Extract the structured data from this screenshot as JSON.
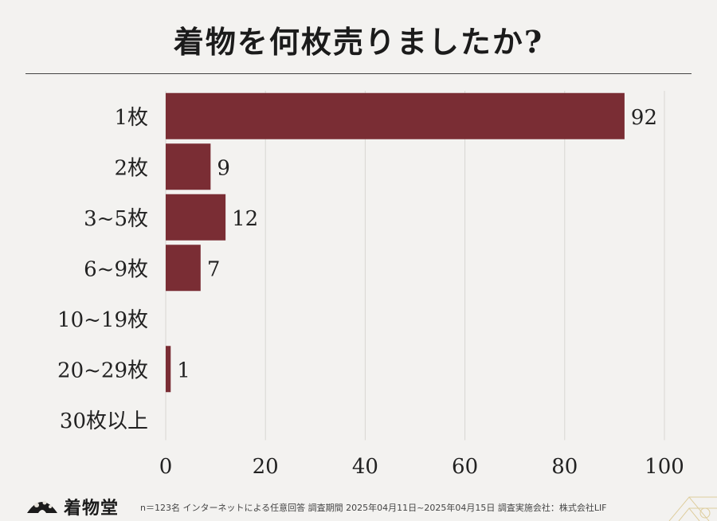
{
  "title": "着物を何枚売りましたか?",
  "chart_data": {
    "type": "bar",
    "orientation": "horizontal",
    "categories": [
      "1枚",
      "2枚",
      "3~5枚",
      "6~9枚",
      "10~19枚",
      "20~29枚",
      "30枚以上"
    ],
    "values": [
      92,
      9,
      12,
      7,
      0,
      1,
      0
    ],
    "value_labels": [
      "92",
      "9",
      "12",
      "7",
      "",
      "1",
      ""
    ],
    "xlim": [
      0,
      100
    ],
    "xticks": [
      0,
      20,
      40,
      60,
      80,
      100
    ],
    "grid": true,
    "bar_color": "#7a2d34"
  },
  "footer": {
    "logo_text": "着物堂",
    "logo_icon": "fan-icon",
    "note": "n＝123名 インターネットによる任意回答 調査期間 2025年04月11日~2025年04月15日 調査実施会社：株式会社LIF"
  },
  "colors": {
    "background": "#f3f2f0",
    "grid": "#d8d6d2",
    "text": "#222222"
  }
}
